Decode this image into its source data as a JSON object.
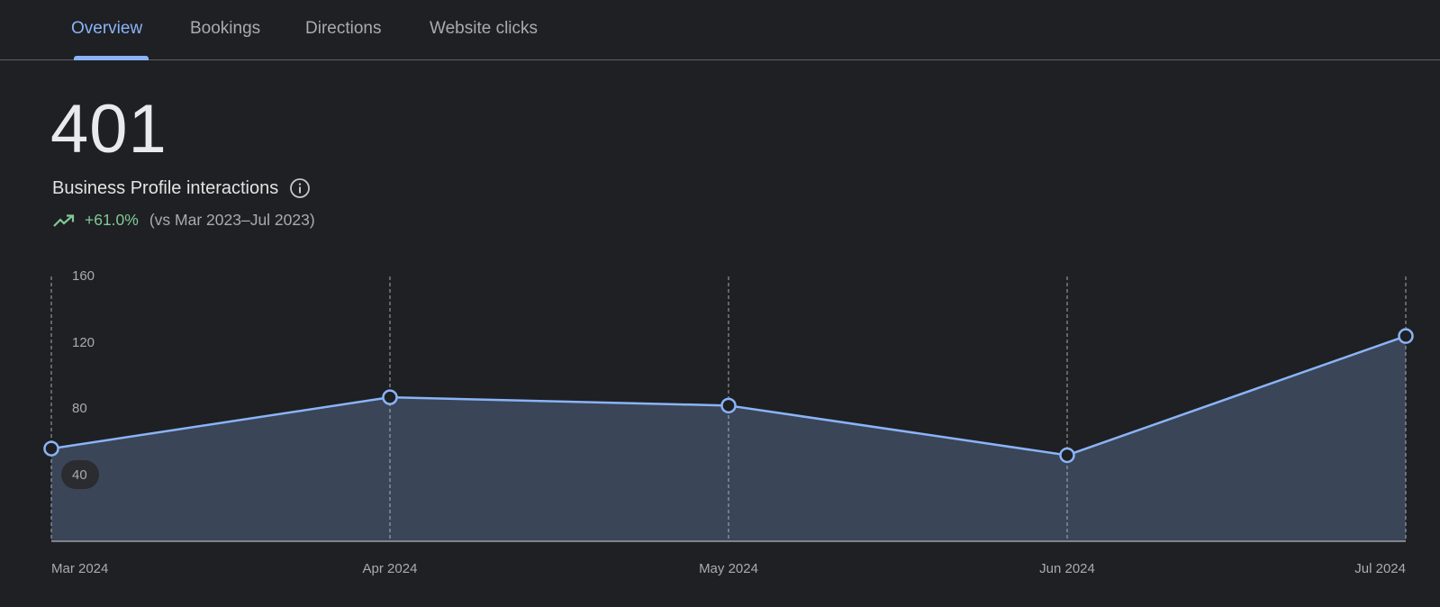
{
  "tabs": [
    {
      "label": "Overview",
      "active": true
    },
    {
      "label": "Bookings",
      "active": false
    },
    {
      "label": "Directions",
      "active": false
    },
    {
      "label": "Website clicks",
      "active": false
    }
  ],
  "summary": {
    "total": "401",
    "label": "Business Profile interactions",
    "info_icon": "info-icon",
    "trend_icon": "trending-up-icon",
    "change": "+61.0%",
    "comparison": "(vs Mar 2023–Jul 2023)"
  },
  "colors": {
    "accent": "#8ab4f8",
    "positive": "#81c995",
    "area_fill": "#3b4558",
    "background": "#1f2023"
  },
  "chart_data": {
    "type": "area",
    "title": "Business Profile interactions",
    "categories": [
      "Mar 2024",
      "Apr 2024",
      "May 2024",
      "Jun 2024",
      "Jul 2024"
    ],
    "series": [
      {
        "name": "Business Profile interactions",
        "values": [
          56,
          87,
          82,
          52,
          124
        ]
      }
    ],
    "yticks": [
      "160",
      "120",
      "80",
      "40"
    ],
    "ylim": [
      0,
      160
    ],
    "xlabel": "",
    "ylabel": "",
    "grid": "vertical dashed",
    "legend": "none"
  }
}
